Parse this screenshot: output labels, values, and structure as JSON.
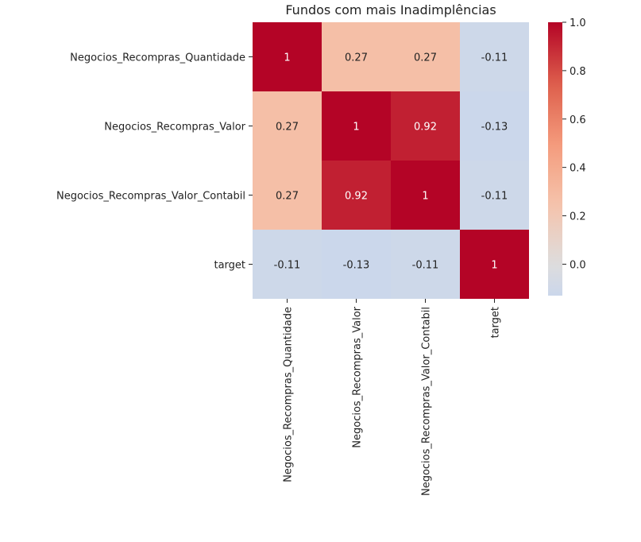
{
  "chart_data": {
    "type": "heatmap",
    "title": "Fundos com mais Inadimplências",
    "row_labels": [
      "Negocios_Recompras_Quantidade",
      "Negocios_Recompras_Valor",
      "Negocios_Recompras_Valor_Contabil",
      "target"
    ],
    "col_labels": [
      "Negocios_Recompras_Quantidade",
      "Negocios_Recompras_Valor",
      "Negocios_Recompras_Valor_Contabil",
      "target"
    ],
    "values": [
      [
        1,
        0.27,
        0.27,
        -0.11
      ],
      [
        0.27,
        1,
        0.92,
        -0.13
      ],
      [
        0.27,
        0.92,
        1,
        -0.11
      ],
      [
        -0.11,
        -0.13,
        -0.11,
        1
      ]
    ],
    "cell_labels": [
      [
        "1",
        "0.27",
        "0.27",
        "-0.11"
      ],
      [
        "0.27",
        "1",
        "0.92",
        "-0.13"
      ],
      [
        "0.27",
        "0.92",
        "1",
        "-0.11"
      ],
      [
        "-0.11",
        "-0.13",
        "-0.11",
        "1"
      ]
    ],
    "colormap": "coolwarm",
    "vmin": -0.13,
    "vmax": 1.0,
    "colorbar": {
      "ticks": [
        0.0,
        0.2,
        0.4,
        0.6,
        0.8,
        1.0
      ],
      "tick_labels": [
        "0.0",
        "0.2",
        "0.4",
        "0.6",
        "0.8",
        "1.0"
      ]
    }
  }
}
